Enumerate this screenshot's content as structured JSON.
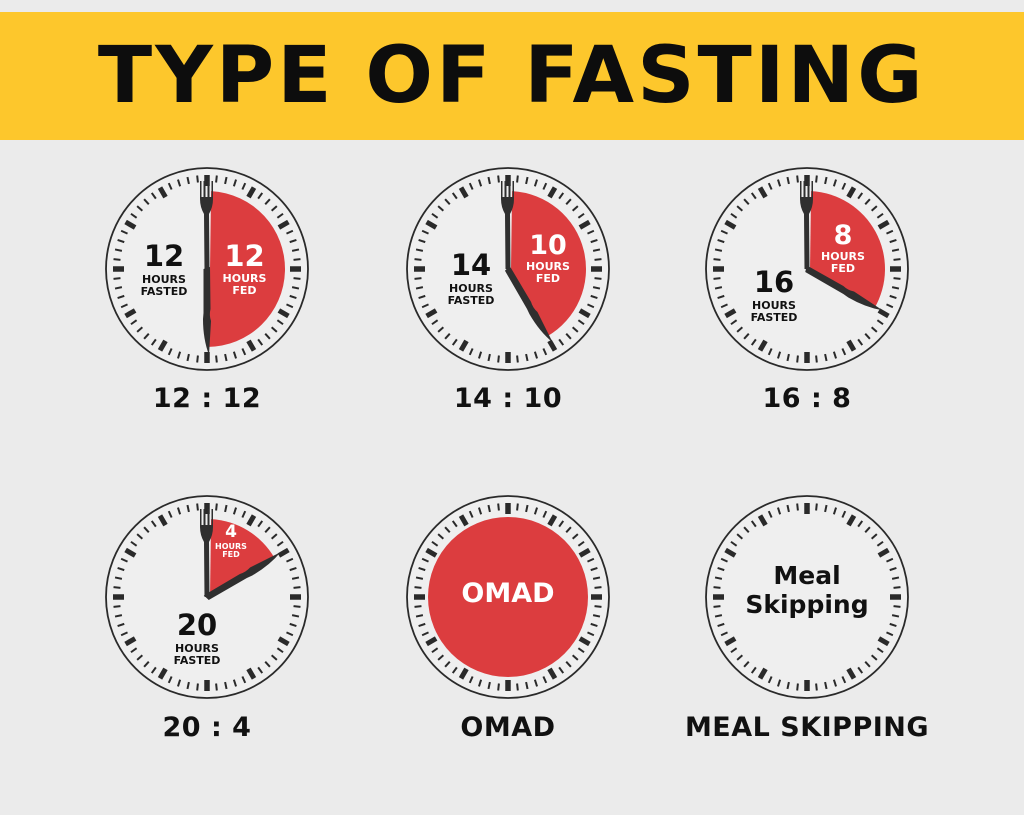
{
  "header": {
    "title": "TYPE OF FASTING"
  },
  "colors": {
    "banner": "#fdc72c",
    "background": "#ebebeb",
    "fed_red": "#dc3d3f",
    "hand": "#2f2f2f",
    "text": "#111111"
  },
  "clocks": [
    {
      "id": "12-12",
      "caption": "12 : 12",
      "fasted_hours": "12",
      "fasted_label_1": "HOURS",
      "fasted_label_2": "FASTED",
      "fed_hours": "12",
      "fed_label_1": "HOURS",
      "fed_label_2": "FED",
      "fed_arc_deg": 180
    },
    {
      "id": "14-10",
      "caption": "14 : 10",
      "fasted_hours": "14",
      "fasted_label_1": "HOURS",
      "fasted_label_2": "FASTED",
      "fed_hours": "10",
      "fed_label_1": "HOURS",
      "fed_label_2": "FED",
      "fed_arc_deg": 150
    },
    {
      "id": "16-8",
      "caption": "16 : 8",
      "fasted_hours": "16",
      "fasted_label_1": "HOURS",
      "fasted_label_2": "FASTED",
      "fed_hours": "8",
      "fed_label_1": "HOURS",
      "fed_label_2": "FED",
      "fed_arc_deg": 120
    },
    {
      "id": "20-4",
      "caption": "20 : 4",
      "fasted_hours": "20",
      "fasted_label_1": "HOURS",
      "fasted_label_2": "FASTED",
      "fed_hours": "4",
      "fed_label_1": "HOURS",
      "fed_label_2": "FED",
      "fed_arc_deg": 60
    },
    {
      "id": "omad",
      "caption": "OMAD",
      "center_text": "OMAD"
    },
    {
      "id": "meal-skipping",
      "caption": "MEAL SKIPPING",
      "center_text_1": "Meal",
      "center_text_2": "Skipping"
    }
  ]
}
